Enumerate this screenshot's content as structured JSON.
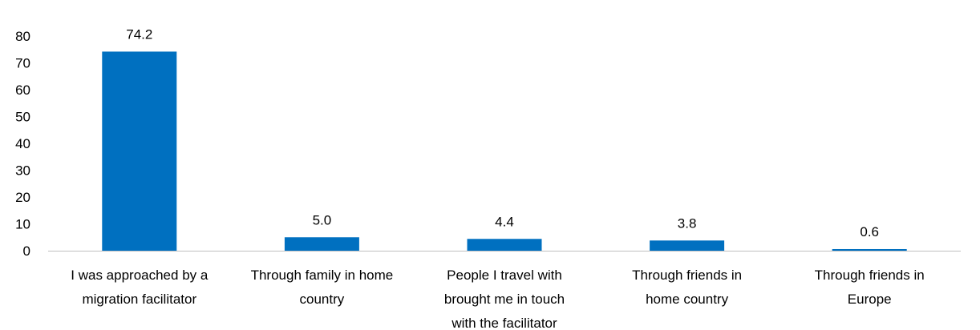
{
  "chart_data": {
    "type": "bar",
    "categories": [
      [
        "I was approached by a",
        "migration facilitator"
      ],
      [
        "Through family in home",
        "country"
      ],
      [
        "People I travel with",
        "brought me in touch",
        "with the facilitator"
      ],
      [
        "Through friends in",
        "home country"
      ],
      [
        "Through friends in",
        "Europe"
      ]
    ],
    "values": [
      74.2,
      5.0,
      4.4,
      3.8,
      0.6
    ],
    "value_labels": [
      "74.2",
      "5.0",
      "4.4",
      "3.8",
      "0.6"
    ],
    "yticks": [
      "0",
      "10",
      "20",
      "30",
      "40",
      "50",
      "60",
      "70",
      "80"
    ],
    "ylim": [
      0,
      80
    ],
    "bar_color": "#0070C0",
    "grid": false,
    "legend": "none"
  }
}
